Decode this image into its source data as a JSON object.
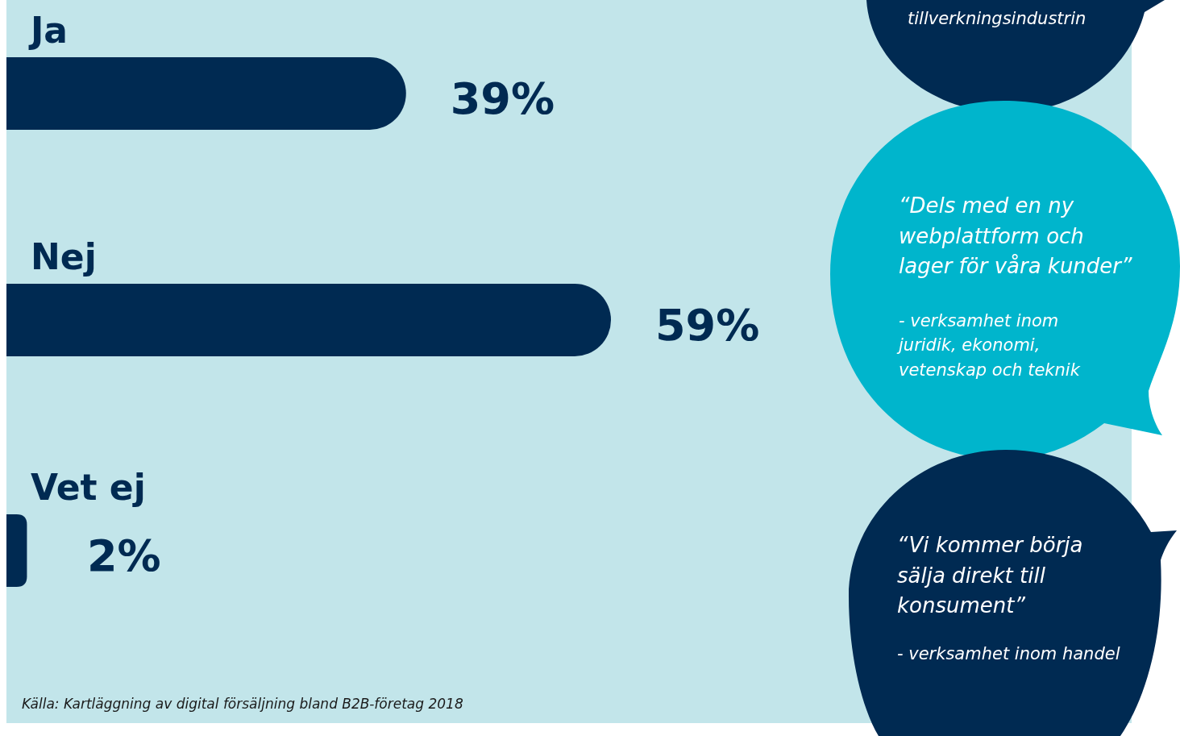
{
  "chart_data": {
    "type": "bar",
    "orientation": "horizontal",
    "categories": [
      "Ja",
      "Nej",
      "Vet ej"
    ],
    "values": [
      39,
      59,
      2
    ],
    "color": "#002a52",
    "value_labels": [
      "39%",
      "59%",
      "2%"
    ],
    "annotations": [
      "tillverkningsindustrin",
      "“Dels med en ny\nwebplattform och\nlager för våra kunder”",
      "- verksamhet inom\njuridik, ekonomi,\nvetenskap och teknik",
      "“Vi kommer börja\nsälja direkt till\nkonsument”",
      "- verksamhet inom handel",
      "Källa: Kartläggning av digital försäljning bland B2B-företag 2018"
    ]
  }
}
